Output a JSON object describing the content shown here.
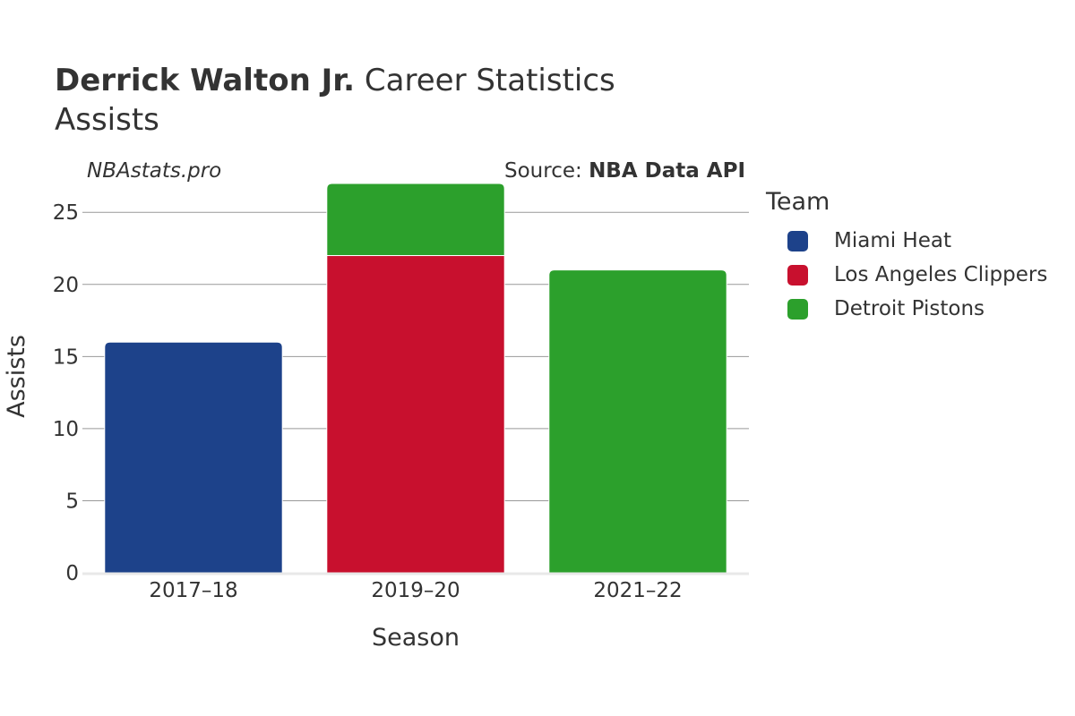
{
  "header": {
    "player_name": "Derrick Walton Jr.",
    "title_rest": "Career Statistics",
    "subtitle": "Assists",
    "watermark": "NBAstats.pro",
    "source_prefix": "Source: ",
    "source_name": "NBA Data API"
  },
  "legend": {
    "title": "Team",
    "items": [
      {
        "label": "Miami Heat",
        "color": "#1d428a"
      },
      {
        "label": "Los Angeles Clippers",
        "color": "#c8102e"
      },
      {
        "label": "Detroit Pistons",
        "color": "#2ca02c"
      }
    ]
  },
  "chart_data": {
    "type": "bar",
    "stacked": true,
    "title": "Derrick Walton Jr. Career Statistics",
    "subtitle": "Assists",
    "xlabel": "Season",
    "ylabel": "Assists",
    "categories": [
      "2017–18",
      "2019–20",
      "2021–22"
    ],
    "series": [
      {
        "name": "Miami Heat",
        "color": "#1d428a",
        "values": [
          16,
          0,
          0
        ]
      },
      {
        "name": "Los Angeles Clippers",
        "color": "#c8102e",
        "values": [
          0,
          22,
          0
        ]
      },
      {
        "name": "Detroit Pistons",
        "color": "#2ca02c",
        "values": [
          0,
          5,
          21
        ]
      }
    ],
    "ylim": [
      0,
      27
    ],
    "yticks": [
      0,
      5,
      10,
      15,
      20,
      25
    ],
    "grid": true,
    "legend_position": "right"
  }
}
